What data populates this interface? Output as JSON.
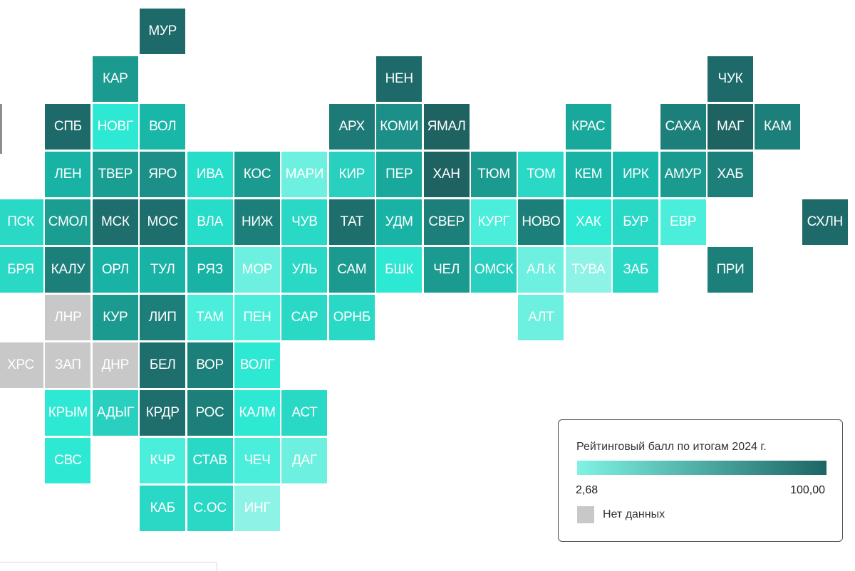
{
  "scale_colors": {
    "min": "#7ff3e3",
    "max": "#1d6565",
    "nodata": "#c8c8c8"
  },
  "regions": [
    {
      "label": "МУР",
      "row": 0,
      "col": 3,
      "color": "#1e6a6a"
    },
    {
      "label": "КАР",
      "row": 1,
      "col": 2,
      "color": "#1b9a8f"
    },
    {
      "label": "НЕН",
      "row": 1,
      "col": 8,
      "color": "#1e6a6a"
    },
    {
      "label": "ЧУК",
      "row": 1,
      "col": 15,
      "color": "#1e6a6a"
    },
    {
      "label": "СПБ",
      "row": 2,
      "col": 1,
      "color": "#1e6a6a"
    },
    {
      "label": "НОВГ",
      "row": 2,
      "col": 2,
      "color": "#2de8d3"
    },
    {
      "label": "ВОЛ",
      "row": 2,
      "col": 3,
      "color": "#18b7a8"
    },
    {
      "label": "АРХ",
      "row": 2,
      "col": 7,
      "color": "#1d7a76"
    },
    {
      "label": "КОМИ",
      "row": 2,
      "col": 8,
      "color": "#1b8f88"
    },
    {
      "label": "ЯМАЛ",
      "row": 2,
      "col": 9,
      "color": "#1e6262"
    },
    {
      "label": "КРАС",
      "row": 2,
      "col": 12,
      "color": "#19a99c"
    },
    {
      "label": "САХА",
      "row": 2,
      "col": 14,
      "color": "#1d7f7a"
    },
    {
      "label": "МАГ",
      "row": 2,
      "col": 15,
      "color": "#1e6262"
    },
    {
      "label": "КАМ",
      "row": 2,
      "col": 16,
      "color": "#1d7f7a"
    },
    {
      "label": "ЛЕН",
      "row": 3,
      "col": 1,
      "color": "#18b3a5"
    },
    {
      "label": "ТВЕР",
      "row": 3,
      "col": 2,
      "color": "#1b9e92"
    },
    {
      "label": "ЯРО",
      "row": 3,
      "col": 3,
      "color": "#1b8f88"
    },
    {
      "label": "ИВА",
      "row": 3,
      "col": 4,
      "color": "#26ddc9"
    },
    {
      "label": "КОС",
      "row": 3,
      "col": 5,
      "color": "#1b9a8f"
    },
    {
      "label": "МАРИ",
      "row": 3,
      "col": 6,
      "color": "#6df0df"
    },
    {
      "label": "КИР",
      "row": 3,
      "col": 7,
      "color": "#2ad0bf"
    },
    {
      "label": "ПЕР",
      "row": 3,
      "col": 8,
      "color": "#18a89c"
    },
    {
      "label": "ХАН",
      "row": 3,
      "col": 9,
      "color": "#1e6262"
    },
    {
      "label": "ТЮМ",
      "row": 3,
      "col": 10,
      "color": "#1b9a8f"
    },
    {
      "label": "ТОМ",
      "row": 3,
      "col": 11,
      "color": "#2ad8c6"
    },
    {
      "label": "КЕМ",
      "row": 3,
      "col": 12,
      "color": "#18b3a5"
    },
    {
      "label": "ИРК",
      "row": 3,
      "col": 13,
      "color": "#18b9aa"
    },
    {
      "label": "АМУР",
      "row": 3,
      "col": 14,
      "color": "#1b9a8f"
    },
    {
      "label": "ХАБ",
      "row": 3,
      "col": 15,
      "color": "#1d7f7a"
    },
    {
      "label": "ПСК",
      "row": 4,
      "col": 0,
      "color": "#2ad8c6"
    },
    {
      "label": "СМОЛ",
      "row": 4,
      "col": 1,
      "color": "#1b9e92"
    },
    {
      "label": "МСК",
      "row": 4,
      "col": 2,
      "color": "#1e6e6e"
    },
    {
      "label": "МОС",
      "row": 4,
      "col": 3,
      "color": "#1e6e6e"
    },
    {
      "label": "ВЛА",
      "row": 4,
      "col": 4,
      "color": "#26ddc9"
    },
    {
      "label": "НИЖ",
      "row": 4,
      "col": 5,
      "color": "#1d7f7a"
    },
    {
      "label": "ЧУВ",
      "row": 4,
      "col": 6,
      "color": "#2ad8c6"
    },
    {
      "label": "ТАТ",
      "row": 4,
      "col": 7,
      "color": "#1e6e6e"
    },
    {
      "label": "УДМ",
      "row": 4,
      "col": 8,
      "color": "#18b3a5"
    },
    {
      "label": "СВЕР",
      "row": 4,
      "col": 9,
      "color": "#1d7f7a"
    },
    {
      "label": "КУРГ",
      "row": 4,
      "col": 10,
      "color": "#4beedb"
    },
    {
      "label": "НОВО",
      "row": 4,
      "col": 11,
      "color": "#1d7f7a"
    },
    {
      "label": "ХАК",
      "row": 4,
      "col": 12,
      "color": "#2de8d3"
    },
    {
      "label": "БУР",
      "row": 4,
      "col": 13,
      "color": "#2ad8c6"
    },
    {
      "label": "ЕВР",
      "row": 4,
      "col": 14,
      "color": "#4beedb"
    },
    {
      "label": "СХЛН",
      "row": 4,
      "col": 17,
      "color": "#1e6a6a"
    },
    {
      "label": "БРЯ",
      "row": 5,
      "col": 0,
      "color": "#2ad8c6"
    },
    {
      "label": "КАЛУ",
      "row": 5,
      "col": 1,
      "color": "#1d7f7a"
    },
    {
      "label": "ОРЛ",
      "row": 5,
      "col": 2,
      "color": "#18b3a5"
    },
    {
      "label": "ТУЛ",
      "row": 5,
      "col": 3,
      "color": "#18b3a5"
    },
    {
      "label": "РЯЗ",
      "row": 5,
      "col": 4,
      "color": "#18b3a5"
    },
    {
      "label": "МОР",
      "row": 5,
      "col": 5,
      "color": "#6df0df"
    },
    {
      "label": "УЛЬ",
      "row": 5,
      "col": 6,
      "color": "#2ad8c6"
    },
    {
      "label": "САМ",
      "row": 5,
      "col": 7,
      "color": "#1b9a8f"
    },
    {
      "label": "БШК",
      "row": 5,
      "col": 8,
      "color": "#2de8d3"
    },
    {
      "label": "ЧЕЛ",
      "row": 5,
      "col": 9,
      "color": "#1b9a8f"
    },
    {
      "label": "ОМСК",
      "row": 5,
      "col": 10,
      "color": "#2ad0bf"
    },
    {
      "label": "АЛ.К",
      "row": 5,
      "col": 11,
      "color": "#6df0df"
    },
    {
      "label": "ТУВА",
      "row": 5,
      "col": 12,
      "color": "#8cf3e6"
    },
    {
      "label": "ЗАБ",
      "row": 5,
      "col": 13,
      "color": "#2ad8c6"
    },
    {
      "label": "ПРИ",
      "row": 5,
      "col": 15,
      "color": "#1d7f7a"
    },
    {
      "label": "ЛНР",
      "row": 6,
      "col": 1,
      "color": "#c8c8c8"
    },
    {
      "label": "КУР",
      "row": 6,
      "col": 2,
      "color": "#1b9a8f"
    },
    {
      "label": "ЛИП",
      "row": 6,
      "col": 3,
      "color": "#1d7f7a"
    },
    {
      "label": "ТАМ",
      "row": 6,
      "col": 4,
      "color": "#4beedb"
    },
    {
      "label": "ПЕН",
      "row": 6,
      "col": 5,
      "color": "#4beedb"
    },
    {
      "label": "САР",
      "row": 6,
      "col": 6,
      "color": "#2ad8c6"
    },
    {
      "label": "ОРНБ",
      "row": 6,
      "col": 7,
      "color": "#2ad8c6"
    },
    {
      "label": "АЛТ",
      "row": 6,
      "col": 11,
      "color": "#6df0df"
    },
    {
      "label": "ХРС",
      "row": 7,
      "col": 0,
      "color": "#c8c8c8"
    },
    {
      "label": "ЗАП",
      "row": 7,
      "col": 1,
      "color": "#c8c8c8"
    },
    {
      "label": "ДНР",
      "row": 7,
      "col": 2,
      "color": "#c8c8c8"
    },
    {
      "label": "БЕЛ",
      "row": 7,
      "col": 3,
      "color": "#1e6e6e"
    },
    {
      "label": "ВОР",
      "row": 7,
      "col": 4,
      "color": "#1d7f7a"
    },
    {
      "label": "ВОЛГ",
      "row": 7,
      "col": 5,
      "color": "#2de8d3"
    },
    {
      "label": "КРЫМ",
      "row": 8,
      "col": 1,
      "color": "#2de8d3"
    },
    {
      "label": "АДЫГ",
      "row": 8,
      "col": 2,
      "color": "#2ad0bf"
    },
    {
      "label": "КРДР",
      "row": 8,
      "col": 3,
      "color": "#1e6e6e"
    },
    {
      "label": "РОС",
      "row": 8,
      "col": 4,
      "color": "#1d7f7a"
    },
    {
      "label": "КАЛМ",
      "row": 8,
      "col": 5,
      "color": "#2de8d3"
    },
    {
      "label": "АСТ",
      "row": 8,
      "col": 6,
      "color": "#2ad8c6"
    },
    {
      "label": "СВС",
      "row": 9,
      "col": 1,
      "color": "#2de8d3"
    },
    {
      "label": "КЧР",
      "row": 9,
      "col": 3,
      "color": "#4beedb"
    },
    {
      "label": "СТАВ",
      "row": 9,
      "col": 4,
      "color": "#2ad8c6"
    },
    {
      "label": "ЧЕЧ",
      "row": 9,
      "col": 5,
      "color": "#4beedb"
    },
    {
      "label": "ДАГ",
      "row": 9,
      "col": 6,
      "color": "#6df0df"
    },
    {
      "label": "КАБ",
      "row": 10,
      "col": 3,
      "color": "#2ad8c6"
    },
    {
      "label": "С.ОС",
      "row": 10,
      "col": 4,
      "color": "#2ad8c6"
    },
    {
      "label": "ИНГ",
      "row": 10,
      "col": 5,
      "color": "#8cf3e6"
    }
  ],
  "legend": {
    "title": "Рейтинговый балл по итогам 2024 г.",
    "min_label": "2,68",
    "max_label": "100,00",
    "nodata_label": "Нет данных"
  }
}
